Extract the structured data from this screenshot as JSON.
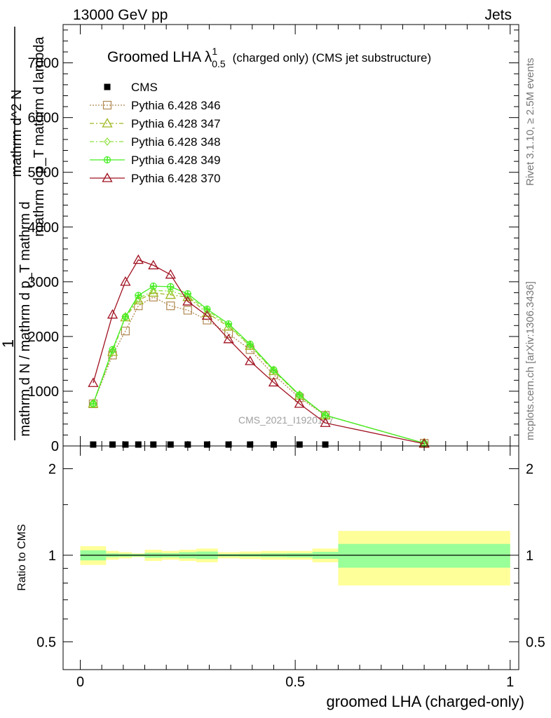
{
  "header": {
    "left": "13000 GeV pp",
    "right": "Jets"
  },
  "side_labels": {
    "rivet": "Rivet 3.1.10, ≥ 2.5M events",
    "mcplots": "mcplots.cern.ch [arXiv:1306.3436]"
  },
  "colors": {
    "band_inner": "#99ff99",
    "band_outer": "#ffff99",
    "cms_marker": "#000000"
  },
  "chart_data": [
    {
      "type": "line",
      "title": "Groomed LHA",
      "title_symbol": "λ",
      "title_sup": "1",
      "title_sub": "0.5",
      "subtitle": "(charged only) (CMS jet substructure)",
      "ylabel_parts": [
        "1",
        "mathrm d N / mathrm d p_T mathrm d",
        "mathrm d^2 N",
        "mathrm d p_T mathrm d lambda"
      ],
      "ylabel": "1 / mathrm d N / mathrm d p_T mathrm d… mathrm d^2N / mathrm d p_T mathrm d lambda",
      "watermark": "CMS_2021_I1920187",
      "xlim": [
        -0.04,
        1.02
      ],
      "ylim": [
        0,
        7700
      ],
      "yticks": [
        0,
        1000,
        2000,
        3000,
        4000,
        5000,
        6000,
        7000
      ],
      "ytick_labels": [
        "0",
        "1000",
        "2000",
        "3000",
        "4000",
        "5000",
        "6000",
        "7000"
      ],
      "grid": false,
      "legend_position": "top-left",
      "bins": [
        0,
        0.06,
        0.09,
        0.12,
        0.15,
        0.19,
        0.23,
        0.27,
        0.32,
        0.37,
        0.42,
        0.48,
        0.54,
        0.6,
        1.0
      ],
      "x": [
        0.03,
        0.075,
        0.105,
        0.135,
        0.17,
        0.21,
        0.25,
        0.295,
        0.345,
        0.395,
        0.45,
        0.51,
        0.57,
        0.8
      ],
      "series": [
        {
          "name": "CMS",
          "color": "#000000",
          "marker": "square-filled",
          "line": "none",
          "values": [
            10,
            10,
            10,
            10,
            10,
            10,
            10,
            10,
            10,
            10,
            10,
            10,
            10,
            0
          ]
        },
        {
          "name": "Pythia 6.428 346",
          "color": "#b08850",
          "marker": "square-open",
          "line": "dotted",
          "values": [
            770,
            1660,
            2100,
            2560,
            2720,
            2560,
            2480,
            2300,
            2050,
            1760,
            1300,
            880,
            560,
            50
          ]
        },
        {
          "name": "Pythia 6.428 347",
          "color": "#a0b820",
          "marker": "triangle-open",
          "line": "dashdot",
          "values": [
            770,
            1720,
            2350,
            2660,
            2800,
            2760,
            2720,
            2430,
            2180,
            1830,
            1370,
            920,
            560,
            50
          ]
        },
        {
          "name": "Pythia 6.428 348",
          "color": "#90e040",
          "marker": "diamond-open",
          "line": "dashdot",
          "values": [
            770,
            1740,
            2360,
            2690,
            2840,
            2830,
            2740,
            2480,
            2200,
            1840,
            1380,
            920,
            560,
            50
          ]
        },
        {
          "name": "Pythia 6.428 349",
          "color": "#44ee22",
          "marker": "cross-circle",
          "line": "solid",
          "values": [
            770,
            1760,
            2360,
            2750,
            2920,
            2910,
            2780,
            2500,
            2230,
            1860,
            1390,
            930,
            560,
            50
          ]
        },
        {
          "name": "Pythia 6.428 370",
          "color": "#a01020",
          "marker": "triangle-open",
          "line": "solid",
          "values": [
            1150,
            2400,
            3000,
            3400,
            3300,
            3130,
            2640,
            2380,
            1950,
            1550,
            1160,
            770,
            420,
            40
          ]
        }
      ]
    },
    {
      "type": "area",
      "ylabel": "Ratio to CMS",
      "xlabel": "groomed LHA (charged-only)",
      "xlim": [
        -0.04,
        1.02
      ],
      "xticks": [
        0,
        0.5,
        1
      ],
      "xtick_labels": [
        "0",
        "0.5",
        "1"
      ],
      "ylim": [
        0.4,
        2.4
      ],
      "scale": "log",
      "yticks": [
        0.5,
        1,
        2
      ],
      "ytick_labels": [
        "0.5",
        "1",
        "2"
      ],
      "grid": false,
      "bins": [
        0,
        0.06,
        0.09,
        0.12,
        0.15,
        0.19,
        0.23,
        0.27,
        0.32,
        0.37,
        0.42,
        0.48,
        0.54,
        0.6,
        1.0
      ],
      "series": [
        {
          "name": "stat",
          "values_lo": [
            0.96,
            0.985,
            0.988,
            0.99,
            0.98,
            0.983,
            0.975,
            0.97,
            0.99,
            0.988,
            0.985,
            0.983,
            0.972,
            0.905
          ],
          "values_hi": [
            1.04,
            1.015,
            1.012,
            1.01,
            1.02,
            1.017,
            1.025,
            1.03,
            1.01,
            1.012,
            1.015,
            1.017,
            1.028,
            1.095
          ]
        },
        {
          "name": "total",
          "values_lo": [
            0.925,
            0.965,
            0.975,
            0.985,
            0.955,
            0.965,
            0.955,
            0.945,
            0.975,
            0.97,
            0.965,
            0.965,
            0.945,
            0.785
          ],
          "values_hi": [
            1.075,
            1.035,
            1.025,
            1.015,
            1.045,
            1.035,
            1.045,
            1.055,
            1.025,
            1.03,
            1.035,
            1.035,
            1.055,
            1.215
          ]
        }
      ]
    }
  ]
}
